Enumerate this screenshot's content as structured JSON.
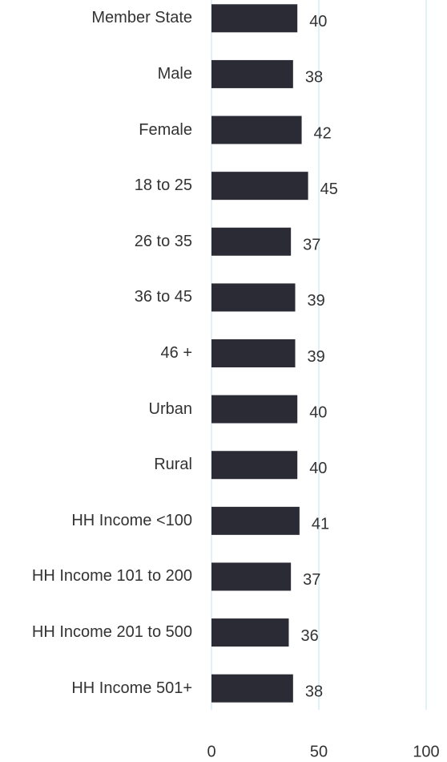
{
  "chart_data": {
    "type": "bar",
    "orientation": "horizontal",
    "categories": [
      "Member State",
      "Male",
      "Female",
      "18 to 25",
      "26 to 35",
      "36 to 45",
      "46 +",
      "Urban",
      "Rural",
      "HH Income <100",
      "HH Income 101 to 200",
      "HH Income 201 to 500",
      "HH Income 501+"
    ],
    "values": [
      40,
      38,
      42,
      45,
      37,
      39,
      39,
      40,
      40,
      41,
      37,
      36,
      38
    ],
    "color": "#2b2b36",
    "xlim": [
      0,
      100
    ],
    "xticks": [
      0,
      50,
      100
    ],
    "grid": true
  }
}
